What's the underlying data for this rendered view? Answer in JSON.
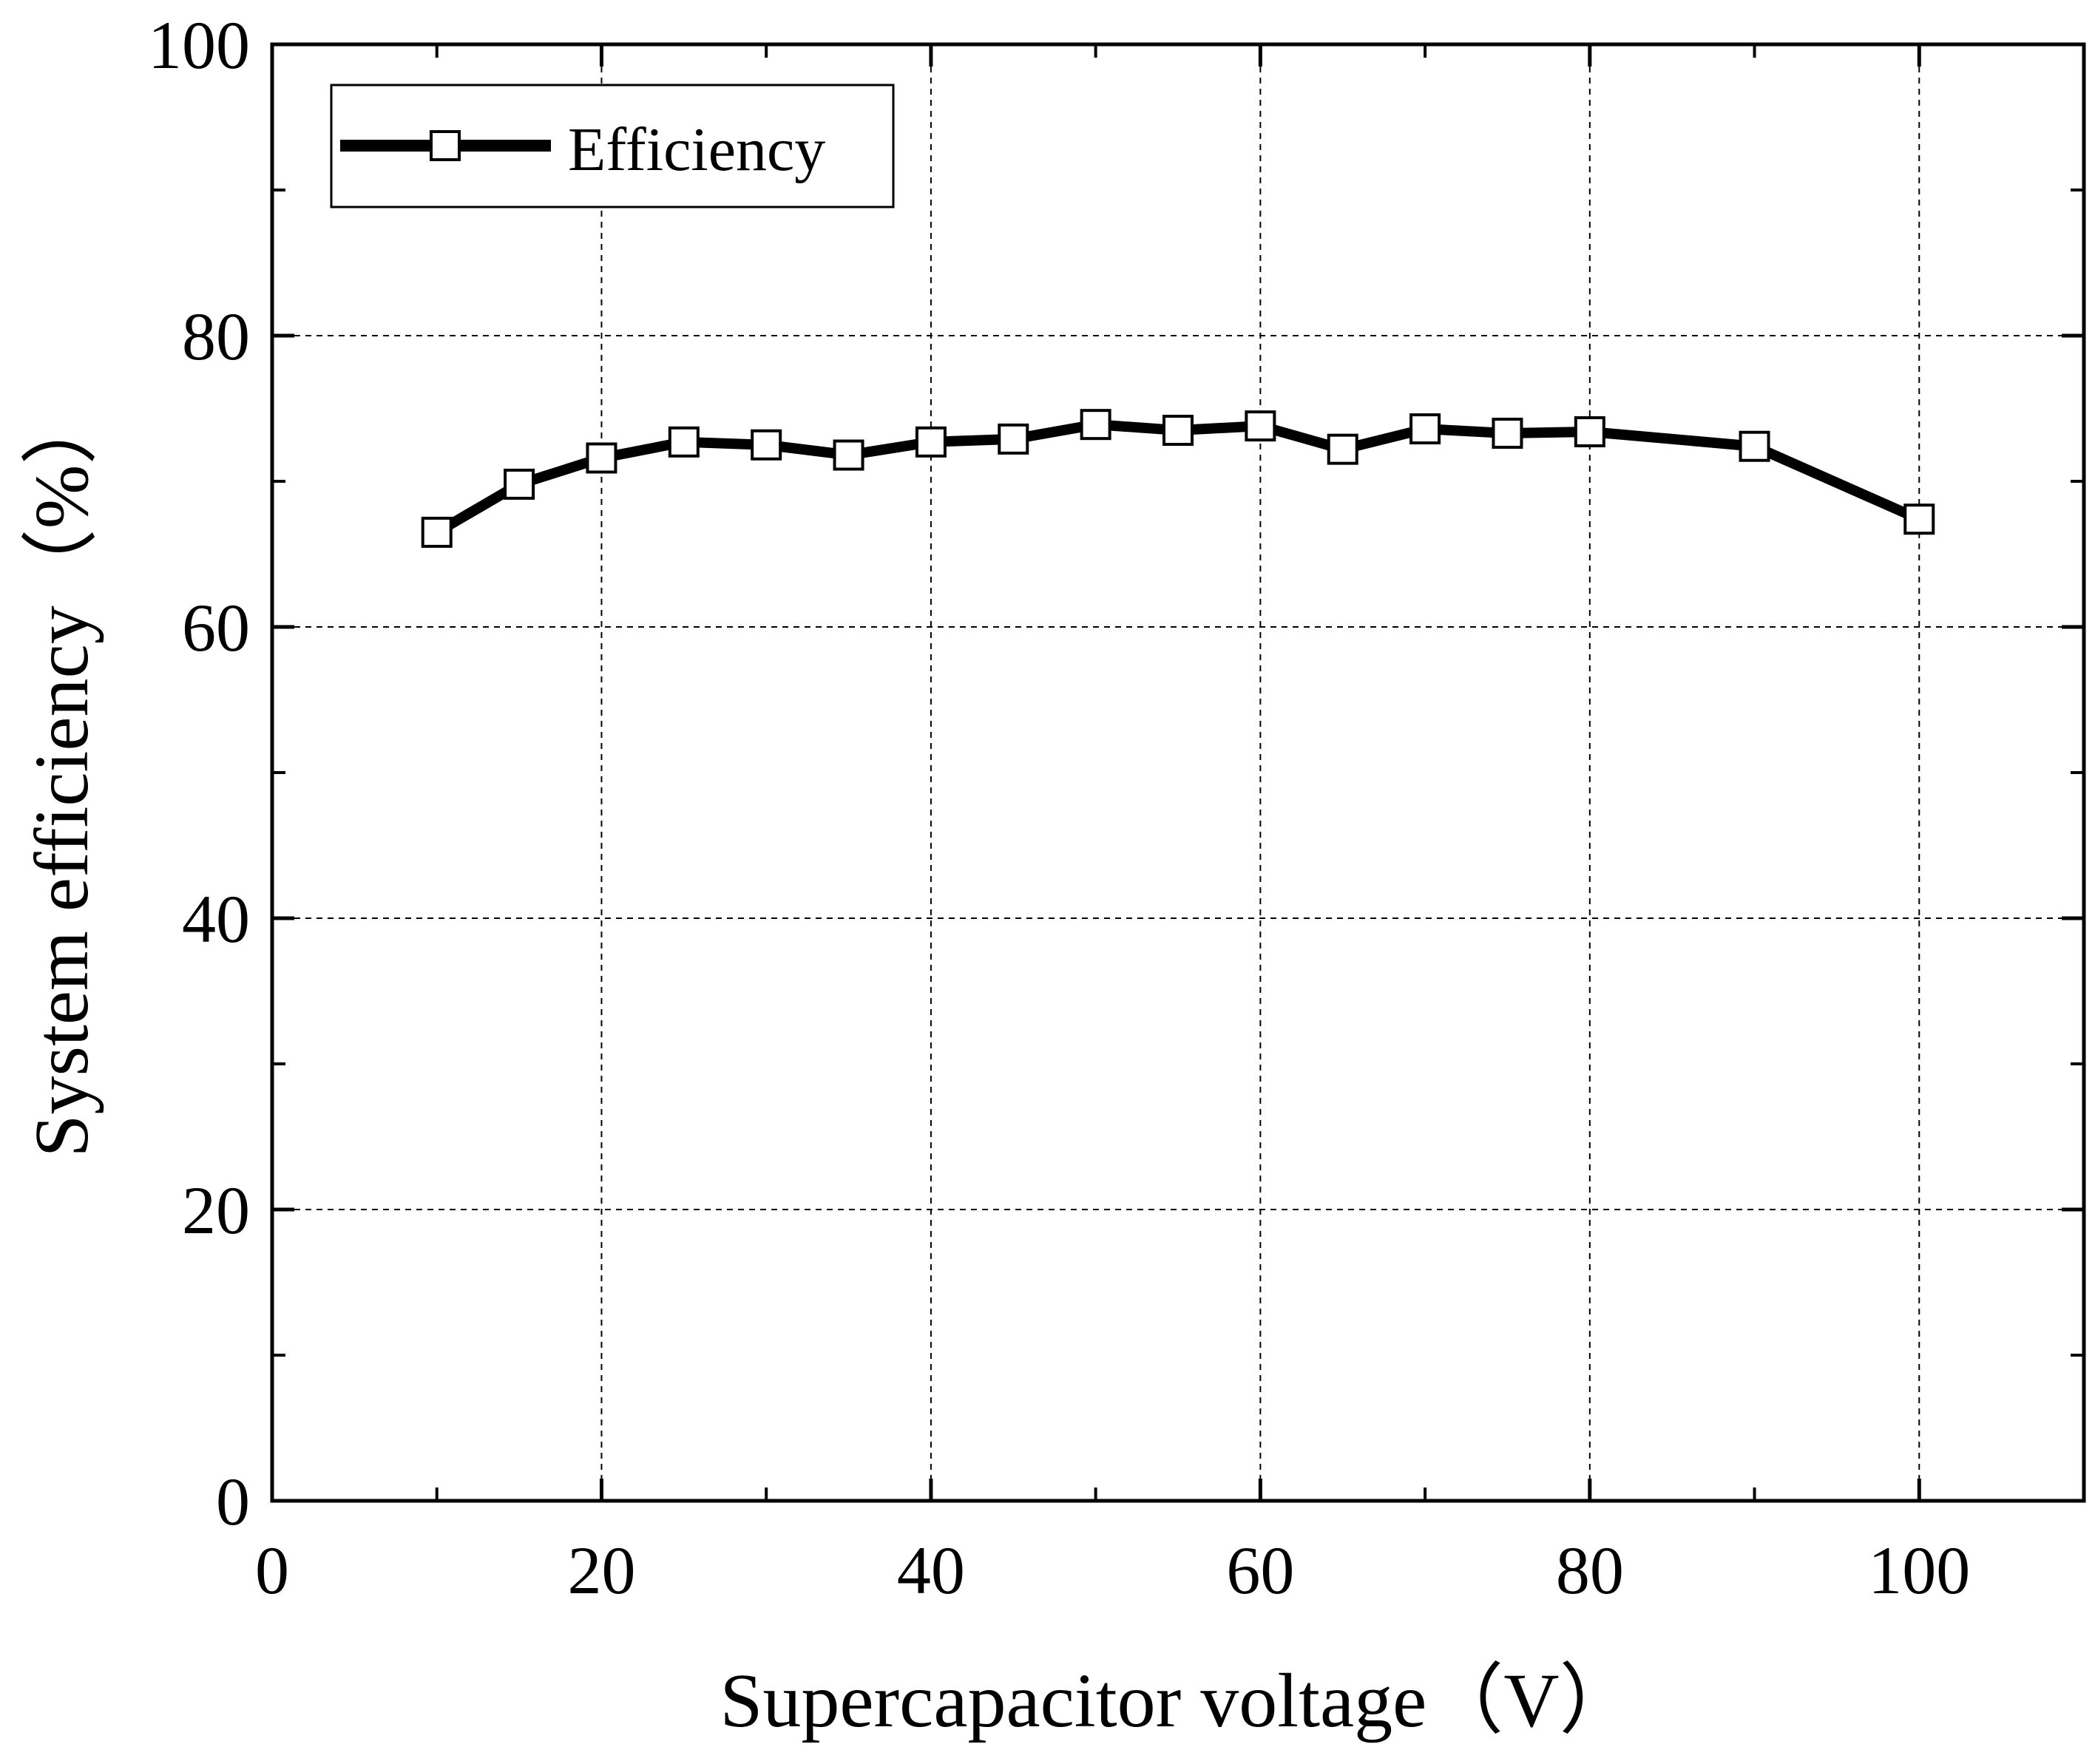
{
  "chart_data": {
    "type": "line",
    "title": "",
    "xlabel": "Supercapacitor voltage（V）",
    "ylabel": "System efficiency（%）",
    "xlim": [
      0,
      110
    ],
    "ylim": [
      0,
      100
    ],
    "x_ticks": [
      0,
      20,
      40,
      60,
      80,
      100
    ],
    "y_ticks": [
      0,
      20,
      40,
      60,
      80,
      100
    ],
    "x_minor_step": 10,
    "y_minor_step": 10,
    "grid": true,
    "legend_position": "top-left",
    "series": [
      {
        "name": "Efficiency",
        "marker": "open-square",
        "x": [
          10,
          15,
          20,
          25,
          30,
          35,
          40,
          45,
          50,
          55,
          60,
          65,
          70,
          75,
          80,
          90,
          100
        ],
        "values": [
          66.5,
          69.8,
          71.6,
          72.7,
          72.5,
          71.8,
          72.7,
          72.9,
          73.9,
          73.5,
          73.8,
          72.2,
          73.6,
          73.3,
          73.4,
          72.4,
          67.4
        ]
      }
    ]
  },
  "colors": {
    "line": "#000000",
    "marker_fill": "#ffffff",
    "grid": "#000000",
    "background": "#ffffff"
  }
}
